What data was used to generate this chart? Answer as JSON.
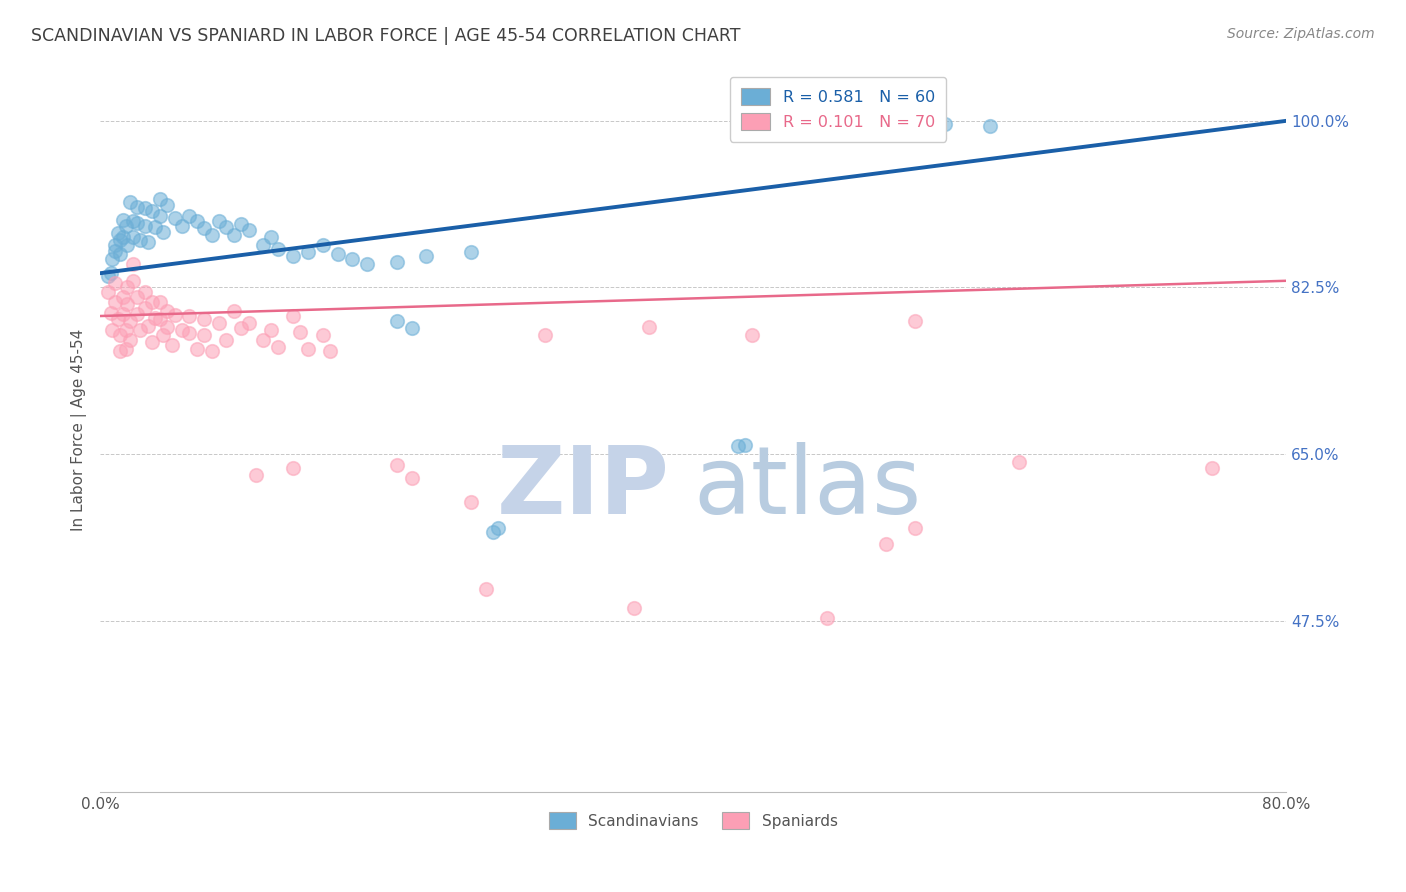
{
  "title": "SCANDINAVIAN VS SPANIARD IN LABOR FORCE | AGE 45-54 CORRELATION CHART",
  "source": "Source: ZipAtlas.com",
  "ylabel": "In Labor Force | Age 45-54",
  "ytick_labels": [
    "100.0%",
    "82.5%",
    "65.0%",
    "47.5%"
  ],
  "ytick_values": [
    1.0,
    0.825,
    0.65,
    0.475
  ],
  "xlim": [
    0.0,
    0.8
  ],
  "ylim": [
    0.295,
    1.055
  ],
  "legend_blue": "R = 0.581   N = 60",
  "legend_pink": "R = 0.101   N = 70",
  "watermark_zip": "ZIP",
  "watermark_atlas": "atlas",
  "scatter_blue": [
    [
      0.005,
      0.837
    ],
    [
      0.007,
      0.84
    ],
    [
      0.008,
      0.855
    ],
    [
      0.01,
      0.87
    ],
    [
      0.01,
      0.863
    ],
    [
      0.012,
      0.882
    ],
    [
      0.013,
      0.86
    ],
    [
      0.013,
      0.875
    ],
    [
      0.015,
      0.896
    ],
    [
      0.015,
      0.878
    ],
    [
      0.017,
      0.89
    ],
    [
      0.018,
      0.87
    ],
    [
      0.02,
      0.915
    ],
    [
      0.022,
      0.895
    ],
    [
      0.022,
      0.878
    ],
    [
      0.025,
      0.91
    ],
    [
      0.025,
      0.893
    ],
    [
      0.027,
      0.875
    ],
    [
      0.03,
      0.908
    ],
    [
      0.03,
      0.89
    ],
    [
      0.032,
      0.873
    ],
    [
      0.035,
      0.905
    ],
    [
      0.037,
      0.888
    ],
    [
      0.04,
      0.918
    ],
    [
      0.04,
      0.9
    ],
    [
      0.042,
      0.883
    ],
    [
      0.045,
      0.912
    ],
    [
      0.05,
      0.898
    ],
    [
      0.055,
      0.89
    ],
    [
      0.06,
      0.9
    ],
    [
      0.065,
      0.895
    ],
    [
      0.07,
      0.887
    ],
    [
      0.075,
      0.88
    ],
    [
      0.08,
      0.895
    ],
    [
      0.085,
      0.888
    ],
    [
      0.09,
      0.88
    ],
    [
      0.095,
      0.892
    ],
    [
      0.1,
      0.885
    ],
    [
      0.11,
      0.87
    ],
    [
      0.115,
      0.878
    ],
    [
      0.12,
      0.865
    ],
    [
      0.13,
      0.858
    ],
    [
      0.14,
      0.862
    ],
    [
      0.15,
      0.87
    ],
    [
      0.16,
      0.86
    ],
    [
      0.17,
      0.855
    ],
    [
      0.18,
      0.85
    ],
    [
      0.2,
      0.852
    ],
    [
      0.22,
      0.858
    ],
    [
      0.25,
      0.862
    ],
    [
      0.2,
      0.79
    ],
    [
      0.21,
      0.782
    ],
    [
      0.265,
      0.568
    ],
    [
      0.268,
      0.572
    ],
    [
      0.43,
      0.658
    ],
    [
      0.435,
      0.66
    ],
    [
      0.56,
      1.0
    ],
    [
      0.565,
      0.998
    ],
    [
      0.57,
      0.997
    ],
    [
      0.6,
      0.995
    ]
  ],
  "scatter_pink": [
    [
      0.005,
      0.82
    ],
    [
      0.007,
      0.798
    ],
    [
      0.008,
      0.78
    ],
    [
      0.01,
      0.81
    ],
    [
      0.01,
      0.83
    ],
    [
      0.012,
      0.792
    ],
    [
      0.013,
      0.775
    ],
    [
      0.013,
      0.758
    ],
    [
      0.015,
      0.815
    ],
    [
      0.015,
      0.797
    ],
    [
      0.017,
      0.78
    ],
    [
      0.017,
      0.76
    ],
    [
      0.018,
      0.825
    ],
    [
      0.018,
      0.808
    ],
    [
      0.02,
      0.79
    ],
    [
      0.02,
      0.77
    ],
    [
      0.022,
      0.85
    ],
    [
      0.022,
      0.832
    ],
    [
      0.025,
      0.815
    ],
    [
      0.025,
      0.797
    ],
    [
      0.027,
      0.78
    ],
    [
      0.03,
      0.82
    ],
    [
      0.03,
      0.803
    ],
    [
      0.032,
      0.785
    ],
    [
      0.035,
      0.768
    ],
    [
      0.035,
      0.81
    ],
    [
      0.037,
      0.793
    ],
    [
      0.04,
      0.81
    ],
    [
      0.04,
      0.792
    ],
    [
      0.042,
      0.775
    ],
    [
      0.045,
      0.8
    ],
    [
      0.045,
      0.783
    ],
    [
      0.048,
      0.765
    ],
    [
      0.05,
      0.796
    ],
    [
      0.055,
      0.78
    ],
    [
      0.06,
      0.795
    ],
    [
      0.06,
      0.777
    ],
    [
      0.065,
      0.76
    ],
    [
      0.07,
      0.792
    ],
    [
      0.07,
      0.775
    ],
    [
      0.075,
      0.758
    ],
    [
      0.08,
      0.788
    ],
    [
      0.085,
      0.77
    ],
    [
      0.09,
      0.8
    ],
    [
      0.095,
      0.782
    ],
    [
      0.1,
      0.788
    ],
    [
      0.105,
      0.628
    ],
    [
      0.11,
      0.77
    ],
    [
      0.115,
      0.78
    ],
    [
      0.12,
      0.762
    ],
    [
      0.13,
      0.795
    ],
    [
      0.13,
      0.635
    ],
    [
      0.135,
      0.778
    ],
    [
      0.14,
      0.76
    ],
    [
      0.15,
      0.775
    ],
    [
      0.155,
      0.758
    ],
    [
      0.2,
      0.638
    ],
    [
      0.21,
      0.625
    ],
    [
      0.25,
      0.6
    ],
    [
      0.26,
      0.508
    ],
    [
      0.3,
      0.775
    ],
    [
      0.36,
      0.488
    ],
    [
      0.37,
      0.783
    ],
    [
      0.44,
      0.775
    ],
    [
      0.49,
      0.478
    ],
    [
      0.55,
      0.572
    ],
    [
      0.62,
      0.642
    ],
    [
      0.75,
      0.635
    ],
    [
      0.53,
      0.555
    ],
    [
      0.55,
      0.79
    ]
  ],
  "blue_line_x": [
    0.0,
    0.8
  ],
  "blue_line_y": [
    0.84,
    1.0
  ],
  "pink_line_x": [
    0.0,
    0.8
  ],
  "pink_line_y": [
    0.795,
    0.832
  ],
  "blue_color": "#6baed6",
  "pink_color": "#fc9fb5",
  "blue_line_color": "#1a5fa8",
  "pink_line_color": "#e8698a",
  "title_color": "#404040",
  "right_tick_color": "#4472c4",
  "grid_color": "#c8c8c8",
  "background_color": "#ffffff",
  "watermark_zip_color": "#c5d3e8",
  "watermark_atlas_color": "#b8cce0",
  "dot_size": 95,
  "dot_alpha": 0.55,
  "dot_edgewidth": 1.2
}
